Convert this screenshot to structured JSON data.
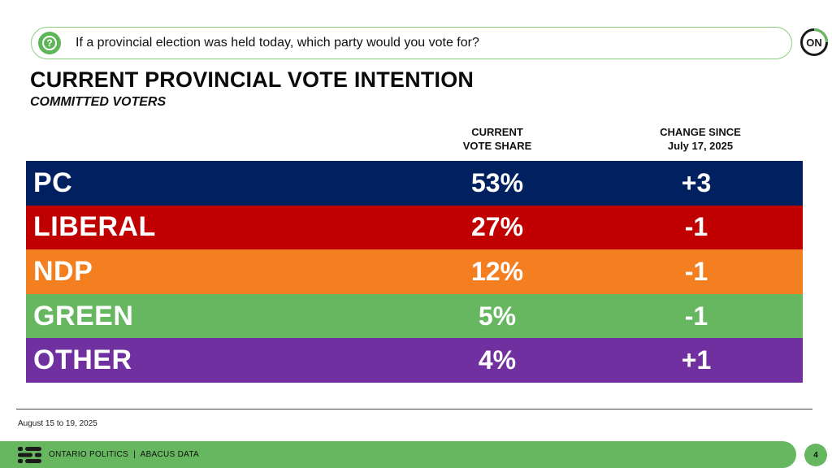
{
  "question": "If a provincial election was held today, which party would you vote for?",
  "logo_text": "ON",
  "title": "CURRENT PROVINCIAL VOTE INTENTION",
  "subtitle": "COMMITTED VOTERS",
  "columns": {
    "share_line1": "CURRENT",
    "share_line2": "VOTE SHARE",
    "change_line1": "CHANGE SINCE",
    "change_line2": "July 17, 2025"
  },
  "chart_data": {
    "type": "table",
    "columns": [
      "CURRENT VOTE SHARE",
      "CHANGE SINCE July 17, 2025"
    ],
    "rows": [
      {
        "party": "PC",
        "share": "53%",
        "change": "+3",
        "color": "#002060"
      },
      {
        "party": "LIBERAL",
        "share": "27%",
        "change": "-1",
        "color": "#c00000"
      },
      {
        "party": "NDP",
        "share": "12%",
        "change": "-1",
        "color": "#f47f20"
      },
      {
        "party": "GREEN",
        "share": "5%",
        "change": "-1",
        "color": "#66b760"
      },
      {
        "party": "OTHER",
        "share": "4%",
        "change": "+1",
        "color": "#7030a0"
      }
    ]
  },
  "date_note": "August 15 to 19, 2025",
  "footer": "ONTARIO POLITICS  |  ABACUS DATA",
  "page_number": "4",
  "colors": {
    "accent_green": "#66b760",
    "border_green": "#8ccf7e"
  }
}
